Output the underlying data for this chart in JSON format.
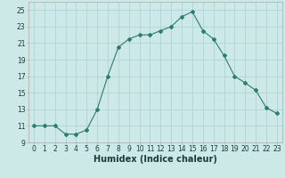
{
  "title": "",
  "xlabel": "Humidex (Indice chaleur)",
  "ylabel": "",
  "x": [
    0,
    1,
    2,
    3,
    4,
    5,
    6,
    7,
    8,
    9,
    10,
    11,
    12,
    13,
    14,
    15,
    16,
    17,
    18,
    19,
    20,
    21,
    22,
    23
  ],
  "y": [
    11,
    11,
    11,
    10,
    10,
    10.5,
    13,
    17,
    20.5,
    21.5,
    22,
    22,
    22.5,
    23,
    24.2,
    24.8,
    22.5,
    21.5,
    19.5,
    17,
    16.2,
    15.3,
    13.2,
    12.5
  ],
  "line_color": "#2d7d6b",
  "marker": "D",
  "marker_size": 2,
  "bg_color": "#cce9e8",
  "grid_color": "#a8d0cf",
  "ylim": [
    9,
    26
  ],
  "xlim": [
    -0.5,
    23.5
  ],
  "yticks": [
    9,
    11,
    13,
    15,
    17,
    19,
    21,
    23,
    25
  ],
  "xticks": [
    0,
    1,
    2,
    3,
    4,
    5,
    6,
    7,
    8,
    9,
    10,
    11,
    12,
    13,
    14,
    15,
    16,
    17,
    18,
    19,
    20,
    21,
    22,
    23
  ],
  "tick_fontsize": 5.5,
  "xlabel_fontsize": 7,
  "title_fontsize": 7
}
